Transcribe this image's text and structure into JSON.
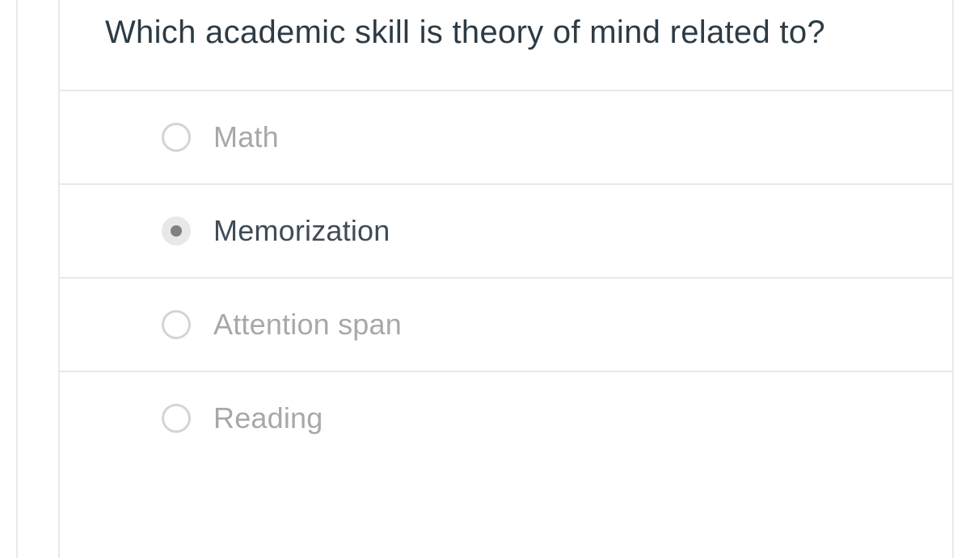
{
  "question": {
    "text": "Which academic skill is theory of mind related to?",
    "text_color": "#2d3b45",
    "fontsize": 40
  },
  "options": [
    {
      "label": "Math",
      "selected": false
    },
    {
      "label": "Memorization",
      "selected": true
    },
    {
      "label": "Attention span",
      "selected": false
    },
    {
      "label": "Reading",
      "selected": false
    }
  ],
  "styling": {
    "divider_color": "#e8e8e8",
    "radio_border_color": "#d4d4d4",
    "radio_selected_bg": "#e8e8e8",
    "radio_selected_dot": "#818181",
    "unselected_text_color": "#a8a8a8",
    "selected_text_color": "#3f4b56",
    "option_fontsize": 36
  }
}
